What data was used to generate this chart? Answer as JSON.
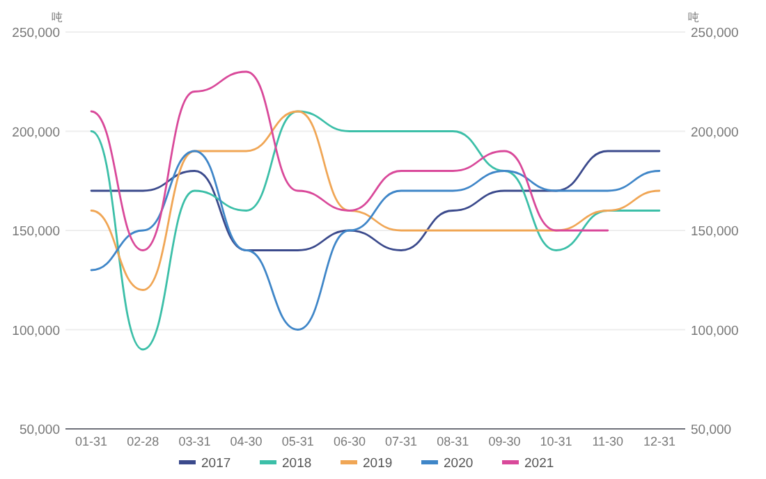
{
  "chart_data": {
    "type": "line",
    "categories": [
      "01-31",
      "02-28",
      "03-31",
      "04-30",
      "05-31",
      "06-30",
      "07-31",
      "08-31",
      "09-30",
      "10-31",
      "11-30",
      "12-31"
    ],
    "series": [
      {
        "name": "2017",
        "color": "#3b4a8c",
        "values": [
          170000,
          170000,
          180000,
          140000,
          140000,
          150000,
          140000,
          160000,
          170000,
          170000,
          190000,
          190000
        ]
      },
      {
        "name": "2018",
        "color": "#3cbfa8",
        "values": [
          200000,
          90000,
          170000,
          160000,
          210000,
          200000,
          200000,
          200000,
          180000,
          140000,
          160000,
          160000
        ]
      },
      {
        "name": "2019",
        "color": "#f0a655",
        "values": [
          160000,
          120000,
          190000,
          190000,
          210000,
          160000,
          150000,
          150000,
          150000,
          150000,
          160000,
          170000
        ]
      },
      {
        "name": "2020",
        "color": "#3f86c8",
        "values": [
          130000,
          150000,
          190000,
          140000,
          100000,
          150000,
          170000,
          170000,
          180000,
          170000,
          170000,
          180000
        ]
      },
      {
        "name": "2021",
        "color": "#d9499a",
        "values": [
          210000,
          140000,
          220000,
          230000,
          170000,
          160000,
          180000,
          180000,
          190000,
          150000,
          150000,
          null
        ]
      }
    ],
    "ylabel": "吨",
    "y2label": "吨",
    "ylim": [
      50000,
      250000
    ],
    "yticks": [
      {
        "value": 50000,
        "label": "50,000"
      },
      {
        "value": 100000,
        "label": "100,000"
      },
      {
        "value": 150000,
        "label": "150,000"
      },
      {
        "value": 200000,
        "label": "200,000"
      },
      {
        "value": 250000,
        "label": "250,000"
      }
    ],
    "y2lim": [
      50000,
      250000
    ],
    "y2ticks": [
      {
        "value": 50000,
        "label": "50,000"
      },
      {
        "value": 100000,
        "label": "100,000"
      },
      {
        "value": 150000,
        "label": "150,000"
      },
      {
        "value": 200000,
        "label": "200,000"
      },
      {
        "value": 250000,
        "label": "250,000"
      }
    ],
    "grid": "y",
    "legend": "bottom"
  }
}
